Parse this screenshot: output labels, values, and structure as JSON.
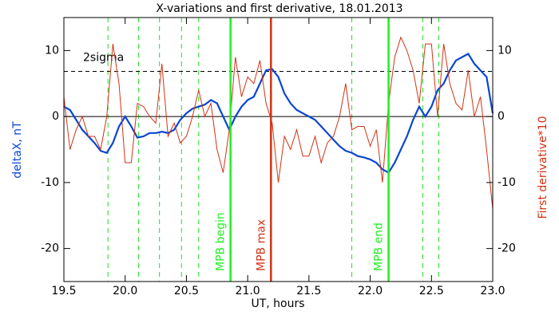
{
  "chart_data": {
    "type": "line",
    "title": "X-variations and first derivative, 18.01.2013",
    "xlabel": "UT, hours",
    "ylabel": "deltaX, nT",
    "y2label": "First derivative*10",
    "x": [
      19.5,
      19.55,
      19.6,
      19.65,
      19.7,
      19.75,
      19.8,
      19.85,
      19.9,
      19.95,
      20.0,
      20.05,
      20.1,
      20.15,
      20.2,
      20.25,
      20.3,
      20.35,
      20.4,
      20.45,
      20.5,
      20.55,
      20.6,
      20.65,
      20.7,
      20.75,
      20.8,
      20.85,
      20.9,
      20.95,
      21.0,
      21.05,
      21.1,
      21.15,
      21.2,
      21.25,
      21.3,
      21.35,
      21.4,
      21.45,
      21.5,
      21.55,
      21.6,
      21.65,
      21.7,
      21.75,
      21.8,
      21.85,
      21.9,
      21.95,
      22.0,
      22.05,
      22.1,
      22.15,
      22.2,
      22.25,
      22.3,
      22.35,
      22.4,
      22.45,
      22.5,
      22.55,
      22.6,
      22.65,
      22.7,
      22.75,
      22.8,
      22.85,
      22.9,
      22.95,
      23.0
    ],
    "series": [
      {
        "name": "deltaX",
        "color": "#0a46d2",
        "values": [
          1.5,
          1.0,
          -0.5,
          -2,
          -3,
          -4,
          -5.2,
          -5.5,
          -4,
          -1.5,
          0,
          -1.5,
          -3.2,
          -3,
          -2.5,
          -2.5,
          -2.3,
          -2.5,
          -2,
          -0.5,
          0.5,
          1.2,
          1.5,
          1.8,
          2.5,
          2.0,
          0,
          -2,
          0,
          1.5,
          2.5,
          3,
          5,
          7,
          7.2,
          6,
          3.5,
          2,
          1,
          0.5,
          0,
          -0.5,
          -1.5,
          -2.5,
          -3.5,
          -4.5,
          -5.2,
          -5.5,
          -6,
          -6.2,
          -6.5,
          -7,
          -8,
          -8.5,
          -7,
          -5,
          -3,
          -0.5,
          1.5,
          0,
          1.5,
          4,
          5,
          7,
          8.5,
          9,
          9.5,
          8,
          7,
          6,
          0.5
        ]
      },
      {
        "name": "First derivative*10",
        "color": "#d23214",
        "axis": "y2",
        "values": [
          3,
          -5,
          -2,
          0,
          -3,
          -3,
          -5,
          0,
          11,
          5,
          -7,
          -7,
          2,
          1.5,
          0,
          -1,
          8,
          -3,
          -1,
          -4,
          -3,
          0,
          4,
          0,
          2,
          -5,
          -8.5,
          -2,
          9,
          3,
          6,
          5,
          8.5,
          2,
          -1,
          -10,
          -3,
          -5,
          -2,
          -6,
          -6,
          -3,
          -7,
          -4,
          -3,
          0,
          5,
          -2,
          -1.5,
          -1.5,
          -4.5,
          -2,
          -10,
          2,
          9,
          12,
          10,
          7,
          2,
          11,
          11,
          0,
          11,
          5,
          2,
          1,
          7,
          0,
          3,
          -5,
          -14
        ]
      }
    ],
    "xlim": [
      19.5,
      23.0
    ],
    "xticks": [
      {
        "value": 19.5,
        "label": "19.5"
      },
      {
        "value": 20.0,
        "label": "20.0"
      },
      {
        "value": 20.5,
        "label": "20.5"
      },
      {
        "value": 21.0,
        "label": "21.0"
      },
      {
        "value": 21.5,
        "label": "21.5"
      },
      {
        "value": 22.0,
        "label": "22.0"
      },
      {
        "value": 22.5,
        "label": "22.5"
      },
      {
        "value": 23.0,
        "label": "23.0"
      }
    ],
    "ylim": [
      -25,
      15
    ],
    "yticks": [
      10,
      0,
      -10,
      -20
    ],
    "y2lim": [
      -25,
      15
    ],
    "y2ticks": [
      10,
      0,
      -10,
      -20
    ],
    "sigma_line": {
      "label": "2sigma",
      "value": 6.85
    },
    "dashed_lines": {
      "color": "#22dd22",
      "x": [
        19.86,
        20.11,
        20.28,
        20.46,
        20.6,
        21.85,
        22.43,
        22.56
      ]
    },
    "markers": [
      {
        "label": "MPB begin",
        "x": 20.86,
        "color": "#22ee22"
      },
      {
        "label": "MPB max",
        "x": 21.19,
        "color": "#d23214"
      },
      {
        "label": "MPB end",
        "x": 22.15,
        "color": "#22ee22"
      }
    ]
  }
}
